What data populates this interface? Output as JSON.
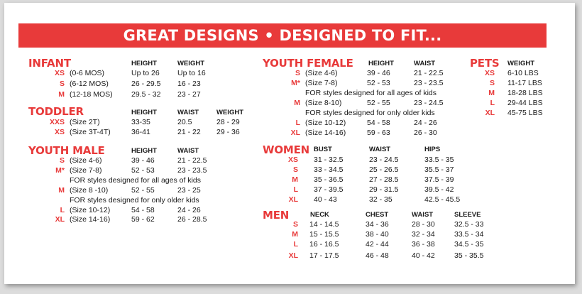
{
  "title": "GREAT DESIGNS • DESIGNED TO FIT...",
  "infant": {
    "name": "INFANT",
    "headers": [
      "HEIGHT",
      "WEIGHT"
    ],
    "rows": [
      {
        "size": "XS",
        "label": "(0-6 MOS)",
        "c1": "Up to 26",
        "c2": "Up to 16"
      },
      {
        "size": "S",
        "label": "(6-12 MOS)",
        "c1": "26 - 29.5",
        "c2": "16 - 23"
      },
      {
        "size": "M",
        "label": "(12-18 MOS)",
        "c1": "29.5 - 32",
        "c2": "23 - 27"
      }
    ]
  },
  "toddler": {
    "name": "TODDLER",
    "headers": [
      "HEIGHT",
      "WAIST",
      "WEIGHT"
    ],
    "rows": [
      {
        "size": "XXS",
        "label": "(Size 2T)",
        "c1": "33-35",
        "c2": "20.5",
        "c3": "28 - 29"
      },
      {
        "size": "XS",
        "label": "(Size 3T-4T)",
        "c1": "36-41",
        "c2": "21 - 22",
        "c3": "29 - 36"
      }
    ]
  },
  "youth_male": {
    "name": "YOUTH MALE",
    "headers": [
      "HEIGHT",
      "WAIST"
    ],
    "rows": [
      {
        "size": "S",
        "label": "(Size 4-6)",
        "c1": "39 - 46",
        "c2": "21 - 22.5"
      },
      {
        "size": "M*",
        "label": "(Size 7-8)",
        "c1": "52 - 53",
        "c2": "23 - 23.5"
      },
      {
        "note": "FOR styles designed for all ages of kids"
      },
      {
        "size": "M",
        "label": "(Size 8 -10)",
        "c1": "52 - 55",
        "c2": "23 - 25"
      },
      {
        "note": "FOR styles designed for only older kids"
      },
      {
        "size": "L",
        "label": "(Size 10-12)",
        "c1": "54 - 58",
        "c2": "24 - 26"
      },
      {
        "size": "XL",
        "label": "(Size 14-16)",
        "c1": "59 - 62",
        "c2": "26 - 28.5"
      }
    ]
  },
  "youth_female": {
    "name": "YOUTH FEMALE",
    "headers": [
      "HEIGHT",
      "WAIST"
    ],
    "rows": [
      {
        "size": "S",
        "label": "(Size 4-6)",
        "c1": "39 - 46",
        "c2": "21 - 22.5"
      },
      {
        "size": "M*",
        "label": "(Size 7-8)",
        "c1": "52 - 53",
        "c2": "23 - 23.5"
      },
      {
        "note": "FOR styles designed for all ages of kids"
      },
      {
        "size": "M",
        "label": "(Size 8-10)",
        "c1": "52 - 55",
        "c2": "23 - 24.5"
      },
      {
        "note": "FOR styles designed for only older kids"
      },
      {
        "size": "L",
        "label": "(Size 10-12)",
        "c1": "54 - 58",
        "c2": "24 - 26"
      },
      {
        "size": "XL",
        "label": "(Size 14-16)",
        "c1": "59 - 63",
        "c2": "26 - 30"
      }
    ]
  },
  "women": {
    "name": "WOMEN",
    "headers": [
      "BUST",
      "WAIST",
      "HIPS"
    ],
    "rows": [
      {
        "size": "XS",
        "c1": "31 - 32.5",
        "c2": "23 - 24.5",
        "c3": "33.5 - 35"
      },
      {
        "size": "S",
        "c1": "33 - 34.5",
        "c2": "25 - 26.5",
        "c3": "35.5 - 37"
      },
      {
        "size": "M",
        "c1": "35 - 36.5",
        "c2": "27 - 28.5",
        "c3": "37.5 - 39"
      },
      {
        "size": "L",
        "c1": "37 - 39.5",
        "c2": "29 - 31.5",
        "c3": "39.5 - 42"
      },
      {
        "size": "XL",
        "c1": "40 - 43",
        "c2": "32 - 35",
        "c3": "42.5 - 45.5"
      }
    ]
  },
  "men": {
    "name": "MEN",
    "headers": [
      "NECK",
      "CHEST",
      "WAIST",
      "SLEEVE"
    ],
    "rows": [
      {
        "size": "S",
        "c1": "14 - 14.5",
        "c2": "34 - 36",
        "c3": "28 - 30",
        "c4": "32.5 - 33"
      },
      {
        "size": "M",
        "c1": "15 - 15.5",
        "c2": "38 - 40",
        "c3": "32 - 34",
        "c4": "33.5 - 34"
      },
      {
        "size": "L",
        "c1": "16 - 16.5",
        "c2": "42 - 44",
        "c3": "36 - 38",
        "c4": "34.5 - 35"
      },
      {
        "size": "XL",
        "c1": "17 - 17.5",
        "c2": "46 - 48",
        "c3": "40 - 42",
        "c4": "35 - 35.5"
      }
    ]
  },
  "pets": {
    "name": "PETS",
    "headers": [
      "WEIGHT"
    ],
    "rows": [
      {
        "size": "XS",
        "c1": "6-10 LBS"
      },
      {
        "size": "S",
        "c1": "11-17 LBS"
      },
      {
        "size": "M",
        "c1": "18-28 LBS"
      },
      {
        "size": "L",
        "c1": "29-44 LBS"
      },
      {
        "size": "XL",
        "c1": "45-75 LBS"
      }
    ]
  },
  "colors": {
    "accent": "#e83a3a",
    "text": "#1a1a1a",
    "background": "#ffffff"
  }
}
